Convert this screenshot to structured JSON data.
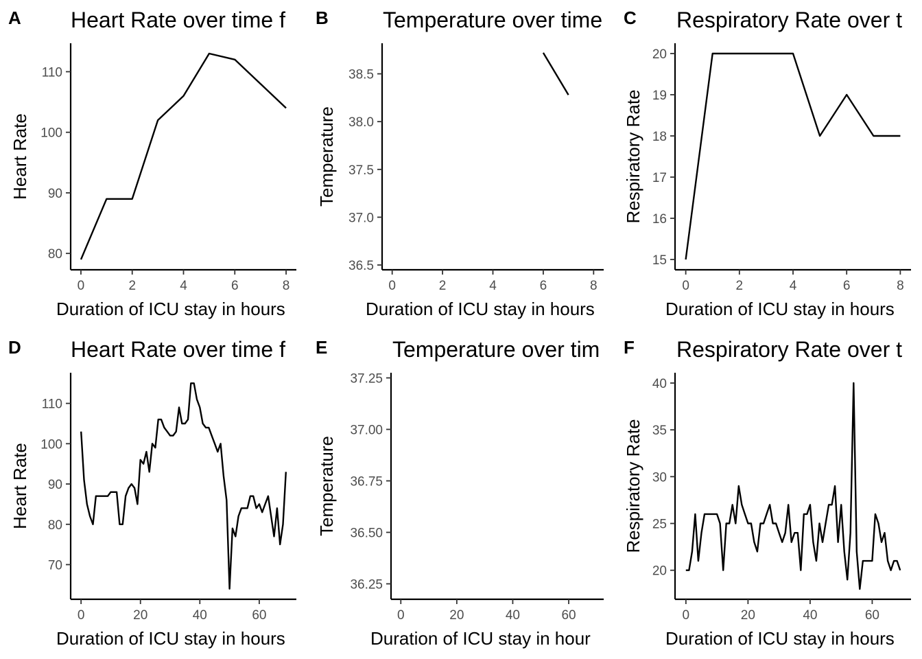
{
  "chart_data": [
    {
      "letter": "A",
      "type": "line",
      "title": "Heart Rate over time f",
      "xlabel": "Duration of ICU stay in hours",
      "ylabel": "Heart Rate",
      "xlim": [
        -0.4,
        8.4
      ],
      "ylim": [
        77.3,
        114.7
      ],
      "xticks": [
        0,
        2,
        4,
        6,
        8
      ],
      "xticklabels": [
        "0",
        "2",
        "4",
        "6",
        "8"
      ],
      "yticks": [
        80,
        90,
        100,
        110
      ],
      "yticklabels": [
        "80",
        "90",
        "100",
        "110"
      ],
      "x": [
        0,
        1,
        2,
        3,
        4,
        5,
        6,
        7,
        8
      ],
      "y": [
        79,
        89,
        89,
        102,
        106,
        113,
        112,
        108,
        104
      ]
    },
    {
      "letter": "B",
      "type": "line",
      "title": "Temperature over time",
      "xlabel": "Duration of ICU stay in hours",
      "ylabel": "Temperature",
      "xlim": [
        -0.4,
        8.4
      ],
      "ylim": [
        36.45,
        38.82
      ],
      "xticks": [
        0,
        2,
        4,
        6,
        8
      ],
      "xticklabels": [
        "0",
        "2",
        "4",
        "6",
        "8"
      ],
      "yticks": [
        36.5,
        37.0,
        37.5,
        38.0,
        38.5
      ],
      "yticklabels": [
        "36.5",
        "37.0",
        "37.5",
        "38.0",
        "38.5"
      ],
      "x": [
        6,
        7
      ],
      "y": [
        38.72,
        38.28
      ]
    },
    {
      "letter": "C",
      "type": "line",
      "title": "Respiratory Rate over t",
      "xlabel": "Duration of ICU stay in hours",
      "ylabel": "Respiratory Rate",
      "xlim": [
        -0.4,
        8.4
      ],
      "ylim": [
        14.75,
        20.25
      ],
      "xticks": [
        0,
        2,
        4,
        6,
        8
      ],
      "xticklabels": [
        "0",
        "2",
        "4",
        "6",
        "8"
      ],
      "yticks": [
        15,
        16,
        17,
        18,
        19,
        20
      ],
      "yticklabels": [
        "15",
        "16",
        "17",
        "18",
        "19",
        "20"
      ],
      "x": [
        0,
        1,
        2,
        3,
        4,
        5,
        6,
        7,
        8
      ],
      "y": [
        15,
        20,
        20,
        20,
        20,
        18,
        19,
        18,
        18
      ]
    },
    {
      "letter": "D",
      "type": "line",
      "title": "Heart Rate over time f",
      "xlabel": "Duration of ICU stay in hours",
      "ylabel": "Heart Rate",
      "xlim": [
        -3.5,
        72.5
      ],
      "ylim": [
        61.4,
        117.6
      ],
      "xticks": [
        0,
        20,
        40,
        60
      ],
      "xticklabels": [
        "0",
        "20",
        "40",
        "60"
      ],
      "yticks": [
        70,
        80,
        90,
        100,
        110
      ],
      "yticklabels": [
        "70",
        "80",
        "90",
        "100",
        "110"
      ],
      "x": [
        0,
        1,
        2,
        3,
        4,
        5,
        6,
        7,
        8,
        9,
        10,
        11,
        12,
        13,
        14,
        15,
        16,
        17,
        18,
        19,
        20,
        21,
        22,
        23,
        24,
        25,
        26,
        27,
        28,
        29,
        30,
        31,
        32,
        33,
        34,
        35,
        36,
        37,
        38,
        39,
        40,
        41,
        42,
        43,
        44,
        45,
        46,
        47,
        48,
        49,
        50,
        51,
        52,
        53,
        54,
        55,
        56,
        57,
        58,
        59,
        60,
        61,
        62,
        63,
        64,
        65,
        66,
        67,
        68,
        69
      ],
      "y": [
        103,
        91,
        85,
        82,
        80,
        87,
        87,
        87,
        87,
        87,
        88,
        88,
        88,
        80,
        80,
        87,
        89,
        90,
        89,
        85,
        96,
        95,
        98,
        93,
        100,
        99,
        106,
        106,
        104,
        103,
        102,
        102,
        103,
        109,
        105,
        105,
        106,
        115,
        115,
        111,
        109,
        105,
        104,
        104,
        102,
        100,
        98,
        100,
        92,
        86,
        64,
        79,
        77,
        82,
        84,
        84,
        84,
        87,
        87,
        84,
        85,
        83,
        85,
        87,
        82,
        77,
        84,
        75,
        80,
        93
      ]
    },
    {
      "letter": "E",
      "type": "line",
      "title": "Temperature over tim",
      "xlabel": "Duration of ICU stay in hour",
      "ylabel": "Temperature",
      "xlim": [
        -3.5,
        72.5
      ],
      "ylim": [
        36.175,
        37.275
      ],
      "xticks": [
        0,
        20,
        40,
        60
      ],
      "xticklabels": [
        "0",
        "20",
        "40",
        "60"
      ],
      "yticks": [
        36.25,
        36.5,
        36.75,
        37.0,
        37.25
      ],
      "yticklabels": [
        "36.25",
        "36.50",
        "36.75",
        "37.00",
        "37.25"
      ],
      "x": [],
      "y": []
    },
    {
      "letter": "F",
      "type": "line",
      "title": "Respiratory Rate over t",
      "xlabel": "Duration of ICU stay in hours",
      "ylabel": "Respiratory Rate",
      "xlim": [
        -3.5,
        72.5
      ],
      "ylim": [
        16.9,
        41.1
      ],
      "xticks": [
        0,
        20,
        40,
        60
      ],
      "xticklabels": [
        "0",
        "20",
        "40",
        "60"
      ],
      "yticks": [
        20,
        25,
        30,
        35,
        40
      ],
      "yticklabels": [
        "20",
        "25",
        "30",
        "35",
        "40"
      ],
      "x": [
        0,
        1,
        2,
        3,
        4,
        5,
        6,
        7,
        8,
        9,
        10,
        11,
        12,
        13,
        14,
        15,
        16,
        17,
        18,
        19,
        20,
        21,
        22,
        23,
        24,
        25,
        26,
        27,
        28,
        29,
        30,
        31,
        32,
        33,
        34,
        35,
        36,
        37,
        38,
        39,
        40,
        41,
        42,
        43,
        44,
        45,
        46,
        47,
        48,
        49,
        50,
        51,
        52,
        53,
        54,
        55,
        56,
        57,
        58,
        59,
        60,
        61,
        62,
        63,
        64,
        65,
        66,
        67,
        68,
        69
      ],
      "y": [
        20,
        20,
        22,
        26,
        21,
        24,
        26,
        26,
        26,
        26,
        26,
        25,
        20,
        25,
        25,
        27,
        25,
        29,
        27,
        26,
        25,
        25,
        23,
        22,
        25,
        25,
        26,
        27,
        25,
        25,
        24,
        23,
        24,
        27,
        23,
        24,
        24,
        20,
        26,
        26,
        27,
        23,
        21,
        25,
        23,
        25,
        27,
        27,
        29,
        23,
        27,
        22,
        19,
        24,
        40,
        22,
        18,
        21,
        21,
        21,
        21,
        26,
        25,
        23,
        24,
        21,
        20,
        21,
        21,
        20
      ]
    }
  ]
}
